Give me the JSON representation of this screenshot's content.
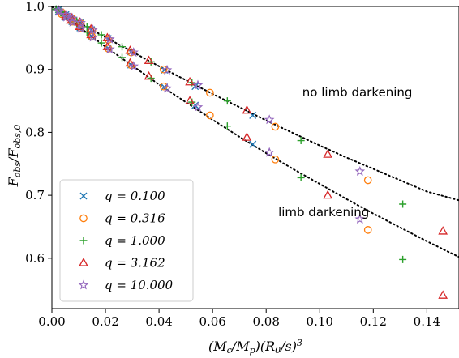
{
  "chart_data": {
    "type": "scatter",
    "xlabel": "(M_c/M_p)(R_0/s)^3",
    "ylabel": "F_obs/F_obs,0",
    "xlim": [
      0.0,
      0.152
    ],
    "ylim": [
      0.52,
      1.0
    ],
    "x_ticks": [
      0.0,
      0.02,
      0.04,
      0.06,
      0.08,
      0.1,
      0.12,
      0.14
    ],
    "x_tick_labels": [
      "0.00",
      "0.02",
      "0.04",
      "0.06",
      "0.08",
      "0.10",
      "0.12",
      "0.14"
    ],
    "y_ticks": [
      0.6,
      0.7,
      0.8,
      0.9,
      1.0
    ],
    "y_tick_labels": [
      "0.6",
      "0.7",
      "0.8",
      "0.9",
      "1.0"
    ],
    "grid": false,
    "legend_position": "bottom-left",
    "annotations": [
      {
        "text": "no limb darkening",
        "x": 0.0935,
        "y": 0.857
      },
      {
        "text": "limb darkening",
        "x": 0.0845,
        "y": 0.667
      }
    ],
    "curves": [
      {
        "label": "no limb darkening",
        "style": "dotted",
        "x": [
          0.0,
          0.01,
          0.02,
          0.03,
          0.04,
          0.05,
          0.06,
          0.07,
          0.08,
          0.09,
          0.1,
          0.11,
          0.12,
          0.13,
          0.14,
          0.152
        ],
        "y": [
          1.0,
          0.975,
          0.951,
          0.928,
          0.905,
          0.883,
          0.861,
          0.84,
          0.819,
          0.799,
          0.779,
          0.76,
          0.742,
          0.724,
          0.706,
          0.692
        ]
      },
      {
        "label": "limb darkening",
        "style": "dotted",
        "x": [
          0.0,
          0.01,
          0.02,
          0.03,
          0.04,
          0.05,
          0.06,
          0.07,
          0.08,
          0.09,
          0.1,
          0.11,
          0.12,
          0.13,
          0.14,
          0.152
        ],
        "y": [
          1.0,
          0.968,
          0.936,
          0.906,
          0.876,
          0.848,
          0.82,
          0.793,
          0.767,
          0.742,
          0.718,
          0.694,
          0.671,
          0.649,
          0.627,
          0.602
        ]
      }
    ],
    "series": [
      {
        "name": "q = 0.100",
        "marker": "x",
        "color": "#1f77b4",
        "points": [
          [
            0.0025,
            0.995
          ],
          [
            0.0052,
            0.987
          ],
          [
            0.0075,
            0.981
          ],
          [
            0.0105,
            0.974
          ],
          [
            0.0148,
            0.963
          ],
          [
            0.021,
            0.949
          ],
          [
            0.0295,
            0.928
          ],
          [
            0.042,
            0.899
          ],
          [
            0.0535,
            0.873
          ],
          [
            0.075,
            0.827
          ],
          [
            0.0025,
            0.992
          ],
          [
            0.0052,
            0.983
          ],
          [
            0.0075,
            0.976
          ],
          [
            0.0105,
            0.966
          ],
          [
            0.0148,
            0.953
          ],
          [
            0.021,
            0.934
          ],
          [
            0.0295,
            0.907
          ],
          [
            0.042,
            0.872
          ],
          [
            0.0535,
            0.843
          ],
          [
            0.075,
            0.781
          ]
        ]
      },
      {
        "name": "q = 0.316",
        "marker": "o",
        "color": "#ff7f0e",
        "points": [
          [
            0.0036,
            0.991
          ],
          [
            0.0076,
            0.981
          ],
          [
            0.0108,
            0.973
          ],
          [
            0.015,
            0.962
          ],
          [
            0.0211,
            0.947
          ],
          [
            0.0296,
            0.927
          ],
          [
            0.0417,
            0.9
          ],
          [
            0.059,
            0.863
          ],
          [
            0.0834,
            0.809
          ],
          [
            0.118,
            0.724
          ],
          [
            0.0036,
            0.988
          ],
          [
            0.0076,
            0.976
          ],
          [
            0.0108,
            0.966
          ],
          [
            0.015,
            0.952
          ],
          [
            0.0211,
            0.933
          ],
          [
            0.0296,
            0.907
          ],
          [
            0.0417,
            0.873
          ],
          [
            0.059,
            0.827
          ],
          [
            0.0834,
            0.757
          ],
          [
            0.118,
            0.645
          ]
        ]
      },
      {
        "name": "q = 1.000",
        "marker": "+",
        "color": "#2ca02c",
        "points": [
          [
            0.0016,
            0.996
          ],
          [
            0.0033,
            0.992
          ],
          [
            0.0047,
            0.988
          ],
          [
            0.0066,
            0.984
          ],
          [
            0.0093,
            0.977
          ],
          [
            0.0131,
            0.968
          ],
          [
            0.0185,
            0.955
          ],
          [
            0.0262,
            0.936
          ],
          [
            0.037,
            0.912
          ],
          [
            0.0523,
            0.879
          ],
          [
            0.0655,
            0.85
          ],
          [
            0.093,
            0.787
          ],
          [
            0.131,
            0.686
          ],
          [
            0.0016,
            0.995
          ],
          [
            0.0033,
            0.99
          ],
          [
            0.0047,
            0.985
          ],
          [
            0.0066,
            0.979
          ],
          [
            0.0093,
            0.971
          ],
          [
            0.0131,
            0.959
          ],
          [
            0.0185,
            0.942
          ],
          [
            0.0262,
            0.919
          ],
          [
            0.037,
            0.886
          ],
          [
            0.0523,
            0.848
          ],
          [
            0.0655,
            0.81
          ],
          [
            0.093,
            0.728
          ],
          [
            0.131,
            0.598
          ]
        ]
      },
      {
        "name": "q = 3.162",
        "marker": "triangle",
        "color": "#d62728",
        "points": [
          [
            0.0052,
            0.987
          ],
          [
            0.0073,
            0.982
          ],
          [
            0.0104,
            0.975
          ],
          [
            0.0146,
            0.964
          ],
          [
            0.0207,
            0.95
          ],
          [
            0.0292,
            0.93
          ],
          [
            0.0362,
            0.914
          ],
          [
            0.0515,
            0.88
          ],
          [
            0.0728,
            0.835
          ],
          [
            0.103,
            0.765
          ],
          [
            0.146,
            0.643
          ],
          [
            0.0052,
            0.984
          ],
          [
            0.0073,
            0.978
          ],
          [
            0.0104,
            0.968
          ],
          [
            0.0146,
            0.955
          ],
          [
            0.0207,
            0.936
          ],
          [
            0.0292,
            0.91
          ],
          [
            0.0362,
            0.889
          ],
          [
            0.0515,
            0.85
          ],
          [
            0.0728,
            0.792
          ],
          [
            0.103,
            0.7
          ],
          [
            0.146,
            0.541
          ]
        ]
      },
      {
        "name": "q = 10.000",
        "marker": "star",
        "color": "#9467bd",
        "points": [
          [
            0.0026,
            0.994
          ],
          [
            0.0054,
            0.987
          ],
          [
            0.0077,
            0.981
          ],
          [
            0.0108,
            0.974
          ],
          [
            0.0153,
            0.963
          ],
          [
            0.0216,
            0.948
          ],
          [
            0.0305,
            0.927
          ],
          [
            0.043,
            0.899
          ],
          [
            0.0545,
            0.875
          ],
          [
            0.0812,
            0.82
          ],
          [
            0.115,
            0.738
          ],
          [
            0.0026,
            0.992
          ],
          [
            0.0054,
            0.983
          ],
          [
            0.0077,
            0.975
          ],
          [
            0.0108,
            0.965
          ],
          [
            0.0153,
            0.951
          ],
          [
            0.0216,
            0.932
          ],
          [
            0.0305,
            0.905
          ],
          [
            0.043,
            0.87
          ],
          [
            0.0545,
            0.84
          ],
          [
            0.0812,
            0.768
          ],
          [
            0.115,
            0.662
          ]
        ]
      }
    ]
  }
}
